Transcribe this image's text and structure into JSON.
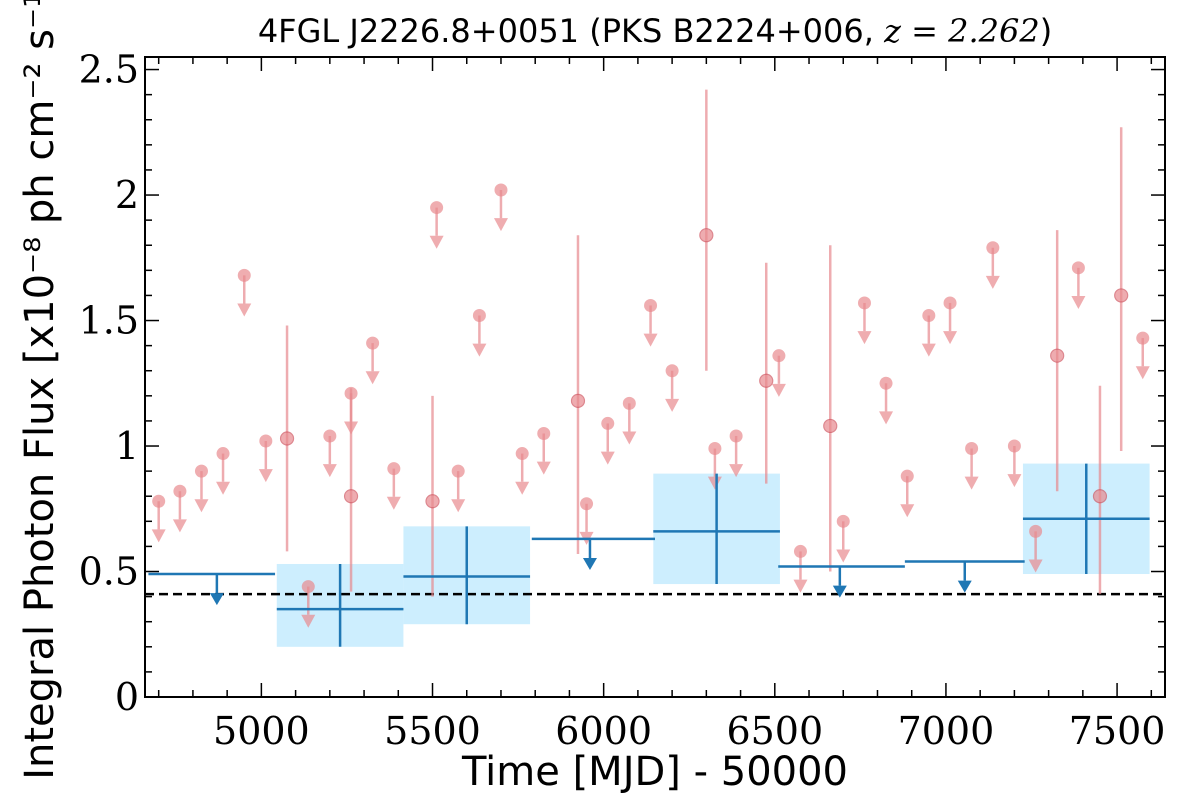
{
  "chart_data": {
    "type": "scatter",
    "title_text": "4FGL J2226.8+0051 (PKS B2224+006, ",
    "title_math": "z = 2.262",
    "title_close": ")",
    "xlabel": "Time [MJD] - 50000",
    "ylabel": "Integral Photon Flux [x10⁻⁸ ph cm⁻² s⁻¹]",
    "xlim": [
      4660,
      7640
    ],
    "ylim": [
      0,
      2.55
    ],
    "xticks": [
      5000,
      5500,
      6000,
      6500,
      7000,
      7500
    ],
    "yticks": [
      0,
      0.5,
      1,
      1.5,
      2,
      2.5
    ],
    "ytick_labels": [
      "0",
      "0.5",
      "1",
      "1.5",
      "2",
      "2.5"
    ],
    "reference_line": {
      "y": 0.41,
      "style": "dashed",
      "color": "#000000"
    },
    "colors": {
      "short_bins": "#e88a8f",
      "long_bins": "#1f77b4",
      "long_bins_error_fill": "#cdeefe"
    },
    "short_bins_upper_limits": [
      {
        "x": 4700,
        "y": 0.78
      },
      {
        "x": 4762,
        "y": 0.82
      },
      {
        "x": 4825,
        "y": 0.9
      },
      {
        "x": 4888,
        "y": 0.97
      },
      {
        "x": 4950,
        "y": 1.68
      },
      {
        "x": 5013,
        "y": 1.02
      },
      {
        "x": 5137,
        "y": 0.44
      },
      {
        "x": 5200,
        "y": 1.04
      },
      {
        "x": 5262,
        "y": 1.21
      },
      {
        "x": 5325,
        "y": 1.41
      },
      {
        "x": 5387,
        "y": 0.91
      },
      {
        "x": 5512,
        "y": 1.95
      },
      {
        "x": 5575,
        "y": 0.9
      },
      {
        "x": 5637,
        "y": 1.52
      },
      {
        "x": 5700,
        "y": 2.02
      },
      {
        "x": 5762,
        "y": 0.97
      },
      {
        "x": 5825,
        "y": 1.05
      },
      {
        "x": 5950,
        "y": 0.77
      },
      {
        "x": 6012,
        "y": 1.09
      },
      {
        "x": 6075,
        "y": 1.17
      },
      {
        "x": 6137,
        "y": 1.56
      },
      {
        "x": 6200,
        "y": 1.3
      },
      {
        "x": 6325,
        "y": 0.99
      },
      {
        "x": 6387,
        "y": 1.04
      },
      {
        "x": 6512,
        "y": 1.36
      },
      {
        "x": 6575,
        "y": 0.58
      },
      {
        "x": 6700,
        "y": 0.7
      },
      {
        "x": 6762,
        "y": 1.57
      },
      {
        "x": 6825,
        "y": 1.25
      },
      {
        "x": 6887,
        "y": 0.88
      },
      {
        "x": 6950,
        "y": 1.52
      },
      {
        "x": 7012,
        "y": 1.57
      },
      {
        "x": 7075,
        "y": 0.99
      },
      {
        "x": 7137,
        "y": 1.79
      },
      {
        "x": 7200,
        "y": 1.0
      },
      {
        "x": 7262,
        "y": 0.66
      },
      {
        "x": 7387,
        "y": 1.71
      },
      {
        "x": 7575,
        "y": 1.43
      }
    ],
    "short_bins_detections": [
      {
        "x": 5075,
        "y": 1.03,
        "ylow": 0.58,
        "yhigh": 1.48
      },
      {
        "x": 5262,
        "y": 0.8,
        "ylow": 0.42,
        "yhigh": 1.23
      },
      {
        "x": 5500,
        "y": 0.78,
        "ylow": 0.4,
        "yhigh": 1.2
      },
      {
        "x": 5925,
        "y": 1.18,
        "ylow": 0.57,
        "yhigh": 1.84
      },
      {
        "x": 6300,
        "y": 1.84,
        "ylow": 1.3,
        "yhigh": 2.42
      },
      {
        "x": 6475,
        "y": 1.26,
        "ylow": 0.85,
        "yhigh": 1.73
      },
      {
        "x": 6662,
        "y": 1.08,
        "ylow": 0.5,
        "yhigh": 1.8
      },
      {
        "x": 7325,
        "y": 1.36,
        "ylow": 0.82,
        "yhigh": 1.86
      },
      {
        "x": 7450,
        "y": 0.8,
        "ylow": 0.41,
        "yhigh": 1.24
      },
      {
        "x": 7512,
        "y": 1.6,
        "ylow": 0.98,
        "yhigh": 2.27
      }
    ],
    "long_bins_upper_limits": [
      {
        "x0": 4670,
        "x1": 5040,
        "y": 0.49,
        "xarrow": 4870
      },
      {
        "x0": 5790,
        "x1": 6150,
        "y": 0.63,
        "xarrow": 5960
      },
      {
        "x0": 6510,
        "x1": 6880,
        "y": 0.52,
        "xarrow": 6690
      },
      {
        "x0": 6880,
        "x1": 7230,
        "y": 0.54,
        "xarrow": 7055
      }
    ],
    "long_bins_detections": [
      {
        "x0": 5045,
        "x1": 5415,
        "xc": 5230,
        "y": 0.35,
        "ylow": 0.2,
        "yhigh": 0.53
      },
      {
        "x0": 5415,
        "x1": 5785,
        "xc": 5600,
        "y": 0.48,
        "ylow": 0.29,
        "yhigh": 0.68
      },
      {
        "x0": 6145,
        "x1": 6515,
        "xc": 6330,
        "y": 0.66,
        "ylow": 0.45,
        "yhigh": 0.89
      },
      {
        "x0": 7225,
        "x1": 7595,
        "xc": 7410,
        "y": 0.71,
        "ylow": 0.49,
        "yhigh": 0.93
      }
    ]
  }
}
